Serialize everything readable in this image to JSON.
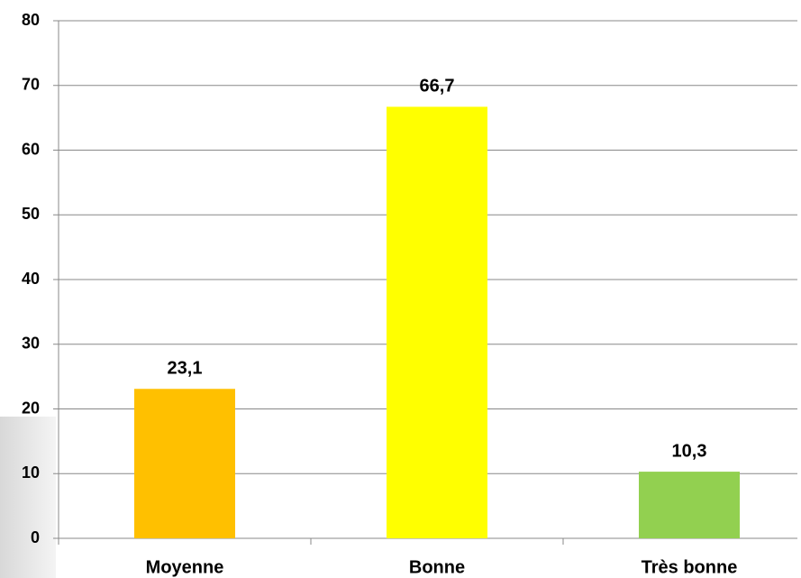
{
  "chart_data": {
    "type": "bar",
    "categories": [
      "Moyenne",
      "Bonne",
      "Très bonne"
    ],
    "values": [
      23.1,
      66.7,
      10.3
    ],
    "value_labels": [
      "23,1",
      "66,7",
      "10,3"
    ],
    "colors": [
      "#ffc000",
      "#ffff00",
      "#92d050"
    ],
    "ylim": [
      0,
      80
    ],
    "yticks": [
      0,
      10,
      20,
      30,
      40,
      50,
      60,
      70,
      80
    ],
    "grid": true
  }
}
